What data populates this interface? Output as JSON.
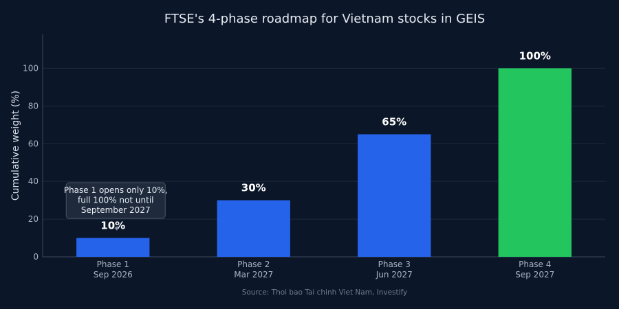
{
  "chart_data": {
    "type": "bar",
    "title": "FTSE's 4-phase roadmap for Vietnam stocks in GEIS",
    "ylabel": "Cumulative weight (%)",
    "xlabel": "",
    "ylim": [
      0,
      118
    ],
    "yticks": [
      0,
      20,
      40,
      60,
      80,
      100
    ],
    "categories": [
      [
        "Phase 1",
        "Sep 2026"
      ],
      [
        "Phase 2",
        "Mar 2027"
      ],
      [
        "Phase 3",
        "Jun 2027"
      ],
      [
        "Phase 4",
        "Sep 2027"
      ]
    ],
    "values": [
      10,
      30,
      65,
      100
    ],
    "data_labels": [
      "10%",
      "30%",
      "65%",
      "100%"
    ],
    "bar_colors": [
      "#2563eb",
      "#2563eb",
      "#2563eb",
      "#22c55e"
    ],
    "grid": true,
    "annotation": {
      "target_index": 0,
      "lines": [
        "Phase 1 opens only 10%,",
        "full 100% not until",
        "September 2027"
      ]
    },
    "source": "Source: Thoi bao Tai chinh Viet Nam, Investify"
  },
  "colors": {
    "background": "#0b1628",
    "grid": "#1e2b3f",
    "axis": "#3b4a60",
    "annotation_bg": "#1f2b3d",
    "annotation_border": "#4a5668"
  }
}
